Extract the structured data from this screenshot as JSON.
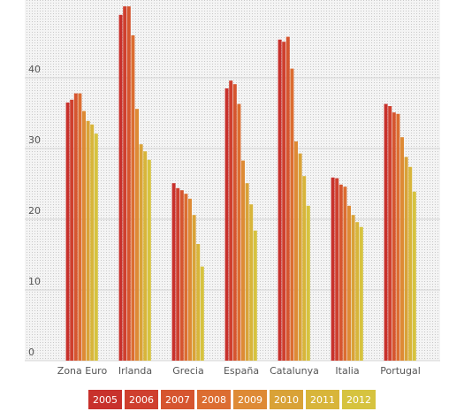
{
  "chart_data": {
    "type": "bar",
    "categories": [
      "Zona Euro",
      "Irlanda",
      "Grecia",
      "España",
      "Catalunya",
      "Italia",
      "Portugal"
    ],
    "series": [
      {
        "name": "2005",
        "color": "#c8312c",
        "values": [
          36.5,
          48.9,
          25.1,
          38.5,
          45.4,
          25.9,
          36.3
        ]
      },
      {
        "name": "2006",
        "color": "#cf3f2e",
        "values": [
          36.9,
          50.1,
          24.4,
          39.6,
          45.1,
          25.8,
          36.0
        ]
      },
      {
        "name": "2007",
        "color": "#d6552f",
        "values": [
          37.8,
          50.1,
          24.1,
          39.1,
          45.8,
          24.9,
          35.1
        ]
      },
      {
        "name": "2008",
        "color": "#dc6d31",
        "values": [
          37.8,
          46.0,
          23.6,
          36.3,
          41.3,
          24.6,
          34.9
        ]
      },
      {
        "name": "2009",
        "color": "#de8a35",
        "values": [
          35.3,
          35.6,
          22.9,
          28.3,
          31.0,
          21.9,
          31.6
        ]
      },
      {
        "name": "2010",
        "color": "#d9a237",
        "values": [
          33.9,
          30.6,
          20.6,
          25.1,
          29.3,
          20.6,
          28.8
        ]
      },
      {
        "name": "2011",
        "color": "#d8b53a",
        "values": [
          33.4,
          29.6,
          16.5,
          22.1,
          26.1,
          19.6,
          27.4
        ]
      },
      {
        "name": "2012",
        "color": "#d6c33f",
        "values": [
          32.1,
          28.4,
          13.3,
          18.4,
          21.9,
          18.9,
          23.9
        ]
      }
    ],
    "ylim": [
      0,
      51
    ],
    "yticks": [
      0,
      10,
      20,
      30,
      40
    ],
    "grid": true
  }
}
